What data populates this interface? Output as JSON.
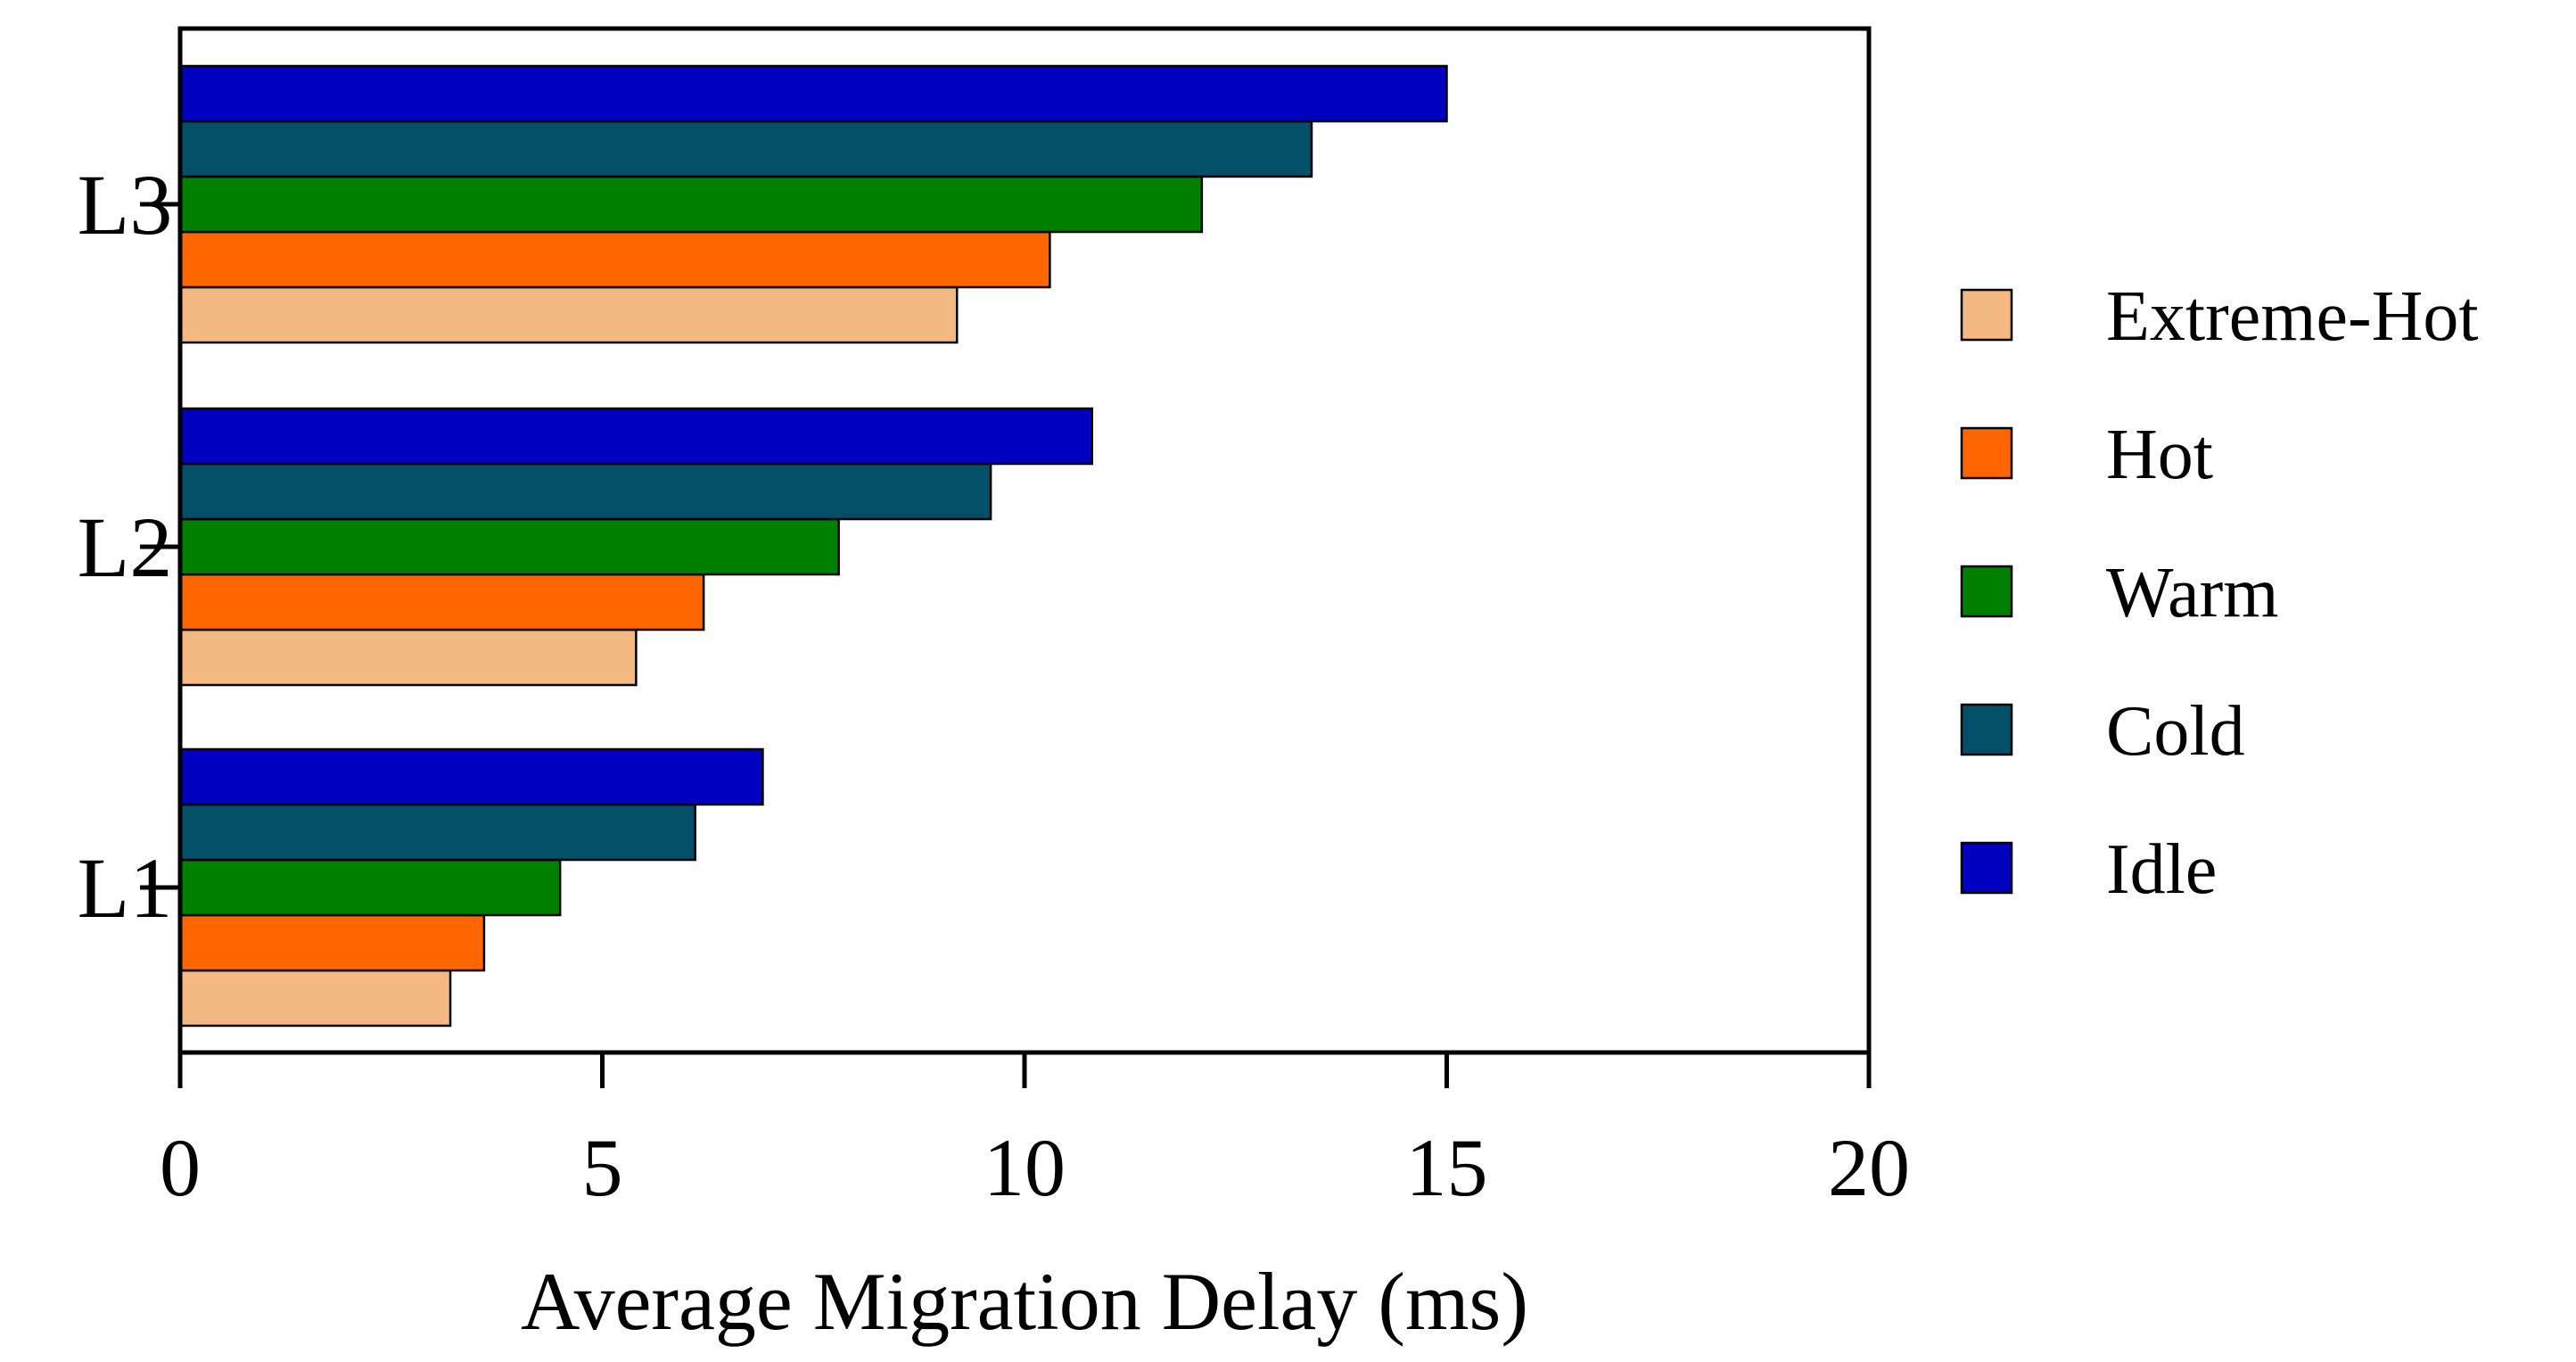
{
  "chart_data": {
    "type": "bar",
    "orientation": "horizontal",
    "title": "",
    "xlabel": "Average Migration Delay (ms)",
    "ylabel": "",
    "xlim": [
      0,
      20
    ],
    "xticks": [
      "0",
      "5",
      "10",
      "15",
      "20"
    ],
    "xtick_values": [
      0,
      5,
      10,
      15,
      20
    ],
    "categories": [
      "L1",
      "L2",
      "L3"
    ],
    "series": [
      {
        "name": "Extreme-Hot",
        "color": "#F4B982",
        "values": [
          3.2,
          5.4,
          9.2
        ]
      },
      {
        "name": "Hot",
        "color": "#FF6600",
        "values": [
          3.6,
          6.2,
          10.3
        ]
      },
      {
        "name": "Warm",
        "color": "#008000",
        "values": [
          4.5,
          7.8,
          12.1
        ]
      },
      {
        "name": "Cold",
        "color": "#044F68",
        "values": [
          6.1,
          9.6,
          13.4
        ]
      },
      {
        "name": "Idle",
        "color": "#0000C0",
        "values": [
          6.9,
          10.8,
          15.0
        ]
      }
    ],
    "grid": false,
    "legend_position": "right"
  }
}
